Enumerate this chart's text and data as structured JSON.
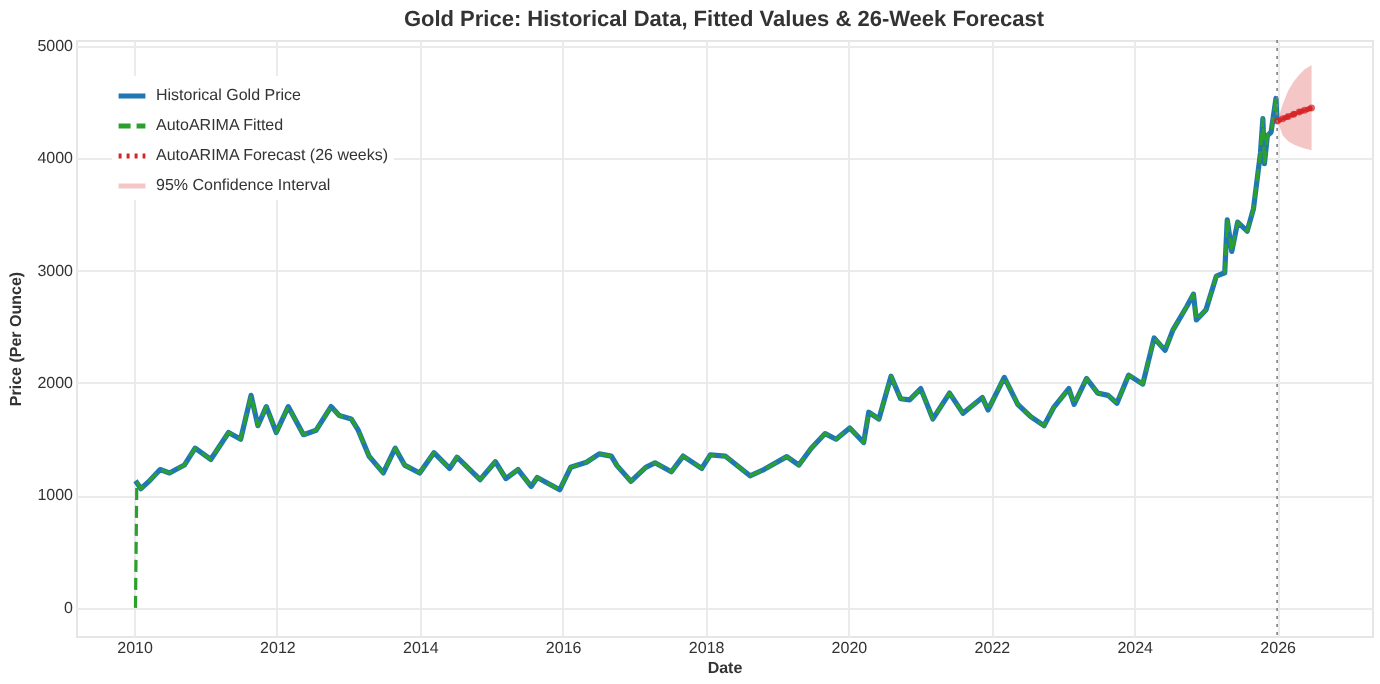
{
  "chart_data": {
    "type": "line",
    "title": "Gold Price: Historical Data, Fitted Values & 26-Week Forecast",
    "xlabel": "Date",
    "ylabel": "Price (Per Ounce)",
    "x": [
      "2010-01-08",
      "2010-02-05",
      "2010-03-15",
      "2010-05-14",
      "2010-07-01",
      "2010-09-15",
      "2010-11-09",
      "2011-01-28",
      "2011-04-29",
      "2011-06-30",
      "2011-08-22",
      "2011-09-26",
      "2011-11-08",
      "2011-12-29",
      "2012-02-28",
      "2012-05-16",
      "2012-07-20",
      "2012-10-04",
      "2012-11-15",
      "2013-01-15",
      "2013-02-20",
      "2013-04-16",
      "2013-06-28",
      "2013-08-28",
      "2013-10-15",
      "2013-12-31",
      "2014-03-14",
      "2014-06-02",
      "2014-07-10",
      "2014-11-05",
      "2015-01-22",
      "2015-03-17",
      "2015-05-18",
      "2015-07-24",
      "2015-08-24",
      "2015-12-17",
      "2016-02-11",
      "2016-05-02",
      "2016-07-06",
      "2016-09-06",
      "2016-10-05",
      "2016-12-15",
      "2017-03-01",
      "2017-04-17",
      "2017-07-10",
      "2017-09-08",
      "2017-12-12",
      "2018-01-25",
      "2018-04-11",
      "2018-08-16",
      "2018-10-26",
      "2019-02-20",
      "2019-04-23",
      "2019-06-25",
      "2019-09-04",
      "2019-10-30",
      "2020-01-08",
      "2020-03-19",
      "2020-04-14",
      "2020-06-05",
      "2020-08-06",
      "2020-09-24",
      "2020-11-09",
      "2021-01-05",
      "2021-03-08",
      "2021-06-01",
      "2021-08-09",
      "2021-11-16",
      "2021-12-15",
      "2022-03-08",
      "2022-05-16",
      "2022-07-21",
      "2022-09-27",
      "2022-11-15",
      "2023-02-01",
      "2023-02-28",
      "2023-05-03",
      "2023-06-29",
      "2023-08-21",
      "2023-10-05",
      "2023-12-04",
      "2024-02-14",
      "2024-04-12",
      "2024-06-07",
      "2024-07-17",
      "2024-09-26",
      "2024-10-30",
      "2024-11-14",
      "2025-01-02",
      "2025-02-24",
      "2025-04-08",
      "2025-04-21",
      "2025-05-14",
      "2025-06-13",
      "2025-08-01",
      "2025-09-02",
      "2025-10-08",
      "2025-10-20",
      "2025-10-28",
      "2025-11-12",
      "2025-12-01",
      "2025-12-26",
      "2025-12-31"
    ],
    "series": [
      {
        "name": "Historical Gold Price",
        "color": "#1f77b4",
        "line_style": "solid",
        "values": [
          1130,
          1060,
          1120,
          1230,
          1200,
          1270,
          1420,
          1320,
          1560,
          1500,
          1890,
          1620,
          1790,
          1560,
          1790,
          1540,
          1580,
          1790,
          1710,
          1680,
          1580,
          1350,
          1200,
          1420,
          1270,
          1200,
          1380,
          1240,
          1340,
          1140,
          1300,
          1150,
          1230,
          1080,
          1160,
          1050,
          1250,
          1295,
          1370,
          1350,
          1265,
          1125,
          1250,
          1290,
          1210,
          1350,
          1240,
          1360,
          1350,
          1175,
          1230,
          1345,
          1270,
          1420,
          1550,
          1500,
          1600,
          1470,
          1740,
          1680,
          2060,
          1860,
          1850,
          1950,
          1680,
          1910,
          1730,
          1870,
          1760,
          2050,
          1810,
          1700,
          1620,
          1780,
          1950,
          1810,
          2040,
          1910,
          1890,
          1820,
          2070,
          1990,
          2400,
          2290,
          2470,
          2680,
          2790,
          2560,
          2650,
          2950,
          2980,
          3450,
          3170,
          3430,
          3350,
          3550,
          4050,
          4350,
          3950,
          4200,
          4230,
          4530,
          4340
        ]
      },
      {
        "name": "AutoARIMA Fitted",
        "color": "#2ca02c",
        "line_style": "dashed",
        "x": [
          "2010-01-08",
          "2010-01-15",
          "2010-02-05",
          "2010-03-15",
          "2010-05-14",
          "2010-07-01",
          "2010-09-15",
          "2010-11-09",
          "2011-01-28",
          "2011-04-29",
          "2011-06-30",
          "2011-08-22",
          "2011-09-26",
          "2011-11-08",
          "2011-12-29",
          "2012-02-28",
          "2012-05-16",
          "2012-07-20",
          "2012-10-04",
          "2012-11-15",
          "2013-01-15",
          "2013-02-20",
          "2013-04-16",
          "2013-06-28",
          "2013-08-28",
          "2013-10-15",
          "2013-12-31",
          "2014-03-14",
          "2014-06-02",
          "2014-07-10",
          "2014-11-05",
          "2015-01-22",
          "2015-03-17",
          "2015-05-18",
          "2015-07-24",
          "2015-08-24",
          "2015-12-17",
          "2016-02-11",
          "2016-05-02",
          "2016-07-06",
          "2016-09-06",
          "2016-10-05",
          "2016-12-15",
          "2017-03-01",
          "2017-04-17",
          "2017-07-10",
          "2017-09-08",
          "2017-12-12",
          "2018-01-25",
          "2018-04-11",
          "2018-08-16",
          "2018-10-26",
          "2019-02-20",
          "2019-04-23",
          "2019-06-25",
          "2019-09-04",
          "2019-10-30",
          "2020-01-08",
          "2020-03-19",
          "2020-04-14",
          "2020-06-05",
          "2020-08-06",
          "2020-09-24",
          "2020-11-09",
          "2021-01-05",
          "2021-03-08",
          "2021-06-01",
          "2021-08-09",
          "2021-11-16",
          "2021-12-15",
          "2022-03-08",
          "2022-05-16",
          "2022-07-21",
          "2022-09-27",
          "2022-11-15",
          "2023-02-01",
          "2023-02-28",
          "2023-05-03",
          "2023-06-29",
          "2023-08-21",
          "2023-10-05",
          "2023-12-04",
          "2024-02-14",
          "2024-04-12",
          "2024-06-07",
          "2024-07-17",
          "2024-09-26",
          "2024-10-30",
          "2024-11-14",
          "2025-01-02",
          "2025-02-24",
          "2025-04-08",
          "2025-04-21",
          "2025-05-14",
          "2025-06-13",
          "2025-08-01",
          "2025-09-02",
          "2025-10-08",
          "2025-10-20",
          "2025-10-28",
          "2025-11-12",
          "2025-12-01",
          "2025-12-26",
          "2025-12-31"
        ],
        "values": [
          0,
          1120,
          1060,
          1120,
          1230,
          1200,
          1270,
          1420,
          1320,
          1560,
          1500,
          1890,
          1620,
          1790,
          1560,
          1790,
          1540,
          1580,
          1790,
          1710,
          1680,
          1580,
          1350,
          1200,
          1420,
          1270,
          1200,
          1380,
          1240,
          1340,
          1140,
          1300,
          1150,
          1230,
          1080,
          1160,
          1050,
          1250,
          1295,
          1370,
          1350,
          1265,
          1125,
          1250,
          1290,
          1210,
          1350,
          1240,
          1360,
          1350,
          1175,
          1230,
          1345,
          1270,
          1420,
          1550,
          1500,
          1600,
          1470,
          1740,
          1680,
          2060,
          1860,
          1850,
          1950,
          1680,
          1910,
          1730,
          1870,
          1760,
          2050,
          1810,
          1700,
          1620,
          1780,
          1950,
          1810,
          2040,
          1910,
          1890,
          1820,
          2070,
          1990,
          2400,
          2290,
          2470,
          2680,
          2790,
          2560,
          2650,
          2950,
          2980,
          3450,
          3170,
          3430,
          3350,
          3550,
          4050,
          4350,
          3950,
          4200,
          4230,
          4530,
          4340
        ]
      },
      {
        "name": "AutoARIMA Forecast (26 weeks)",
        "color": "#d62728",
        "line_style": "dotted",
        "marker": "circle",
        "x": [
          "2026-01-02",
          "2026-01-30",
          "2026-02-27",
          "2026-03-27",
          "2026-04-24",
          "2026-05-22",
          "2026-06-26"
        ],
        "values": [
          4330,
          4350,
          4370,
          4390,
          4410,
          4425,
          4445
        ]
      },
      {
        "name": "95% Confidence Interval",
        "type": "area",
        "color": "#f4c6c6",
        "x": [
          "2026-01-02",
          "2026-01-30",
          "2026-02-27",
          "2026-03-27",
          "2026-04-24",
          "2026-05-22",
          "2026-06-26"
        ],
        "values": [
          null,
          null,
          null,
          null,
          null,
          null,
          null
        ],
        "lower": [
          4330,
          4200,
          4150,
          4120,
          4100,
          4085,
          4070
        ],
        "upper": [
          4330,
          4480,
          4600,
          4680,
          4740,
          4790,
          4825
        ]
      }
    ],
    "xlim": [
      "2009-03-10",
      "2027-05-01"
    ],
    "xticks": [
      "2010",
      "2012",
      "2014",
      "2016",
      "2018",
      "2020",
      "2022",
      "2024",
      "2026"
    ],
    "ylim": [
      -250,
      5050
    ],
    "yticks": [
      0,
      1000,
      2000,
      3000,
      4000,
      5000
    ],
    "ref_lines": [
      {
        "axis": "x",
        "value": "2026-01-01",
        "color": "#808080",
        "line_style": "dotted"
      }
    ],
    "grid": true,
    "legend": "top left"
  }
}
